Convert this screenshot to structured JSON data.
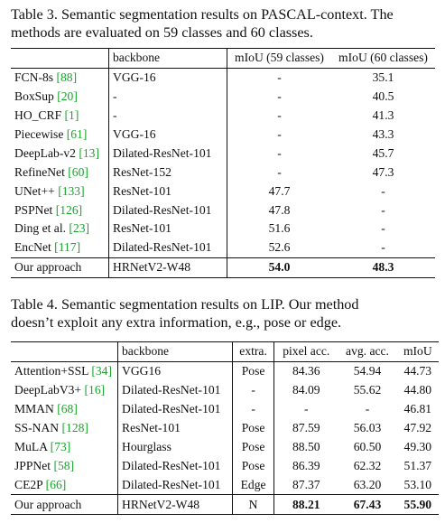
{
  "table3": {
    "caption_line1": "Table 3. Semantic segmentation results on PASCAL-context. The",
    "caption_line2": "methods are evaluated on 59 classes and 60 classes.",
    "headers": [
      "",
      "backbone",
      "mIoU (59 classes)",
      "mIoU (60 classes)"
    ],
    "rows": [
      {
        "method": "FCN-8s",
        "ref": "[88]",
        "backbone": "VGG-16",
        "m59": "-",
        "m60": "35.1"
      },
      {
        "method": "BoxSup",
        "ref": "[20]",
        "backbone": "-",
        "m59": "-",
        "m60": "40.5"
      },
      {
        "method": "HO_CRF",
        "ref": "[1]",
        "backbone": "-",
        "m59": "-",
        "m60": "41.3"
      },
      {
        "method": "Piecewise",
        "ref": "[61]",
        "backbone": "VGG-16",
        "m59": "-",
        "m60": "43.3"
      },
      {
        "method": "DeepLab-v2",
        "ref": "[13]",
        "backbone": "Dilated-ResNet-101",
        "m59": "-",
        "m60": "45.7"
      },
      {
        "method": "RefineNet",
        "ref": "[60]",
        "backbone": "ResNet-152",
        "m59": "-",
        "m60": "47.3"
      },
      {
        "method": "UNet++",
        "ref": "[133]",
        "backbone": "ResNet-101",
        "m59": "47.7",
        "m60": "-"
      },
      {
        "method": "PSPNet",
        "ref": "[126]",
        "backbone": "Dilated-ResNet-101",
        "m59": "47.8",
        "m60": "-"
      },
      {
        "method": "Ding et al.",
        "ref": "[23]",
        "backbone": "ResNet-101",
        "m59": "51.6",
        "m60": "-"
      },
      {
        "method": "EncNet",
        "ref": "[117]",
        "backbone": "Dilated-ResNet-101",
        "m59": "52.6",
        "m60": "-"
      }
    ],
    "final": {
      "method": "Our approach",
      "backbone": "HRNetV2-W48",
      "m59": "54.0",
      "m60": "48.3"
    }
  },
  "table4": {
    "caption_line1": "Table 4. Semantic segmentation results on LIP. Our method",
    "caption_line2": "doesn’t exploit any extra information, e.g., pose or edge.",
    "headers": [
      "",
      "backbone",
      "extra.",
      "pixel acc.",
      "avg. acc.",
      "mIoU"
    ],
    "rows": [
      {
        "method": "Attention+SSL",
        "ref": "[34]",
        "backbone": "VGG16",
        "extra": "Pose",
        "pix": "84.36",
        "avg": "54.94",
        "miou": "44.73"
      },
      {
        "method": "DeepLabV3+",
        "ref": "[16]",
        "backbone": "Dilated-ResNet-101",
        "extra": "-",
        "pix": "84.09",
        "avg": "55.62",
        "miou": "44.80"
      },
      {
        "method": "MMAN",
        "ref": "[68]",
        "backbone": "Dilated-ResNet-101",
        "extra": "-",
        "pix": "-",
        "avg": "-",
        "miou": "46.81"
      },
      {
        "method": "SS-NAN",
        "ref": "[128]",
        "backbone": "ResNet-101",
        "extra": "Pose",
        "pix": "87.59",
        "avg": "56.03",
        "miou": "47.92"
      },
      {
        "method": "MuLA",
        "ref": "[73]",
        "backbone": "Hourglass",
        "extra": "Pose",
        "pix": "88.50",
        "avg": "60.50",
        "miou": "49.30"
      },
      {
        "method": "JPPNet",
        "ref": "[58]",
        "backbone": "Dilated-ResNet-101",
        "extra": "Pose",
        "pix": "86.39",
        "avg": "62.32",
        "miou": "51.37"
      },
      {
        "method": "CE2P",
        "ref": "[66]",
        "backbone": "Dilated-ResNet-101",
        "extra": "Edge",
        "pix": "87.37",
        "avg": "63.20",
        "miou": "53.10"
      }
    ],
    "final": {
      "method": "Our approach",
      "backbone": "HRNetV2-W48",
      "extra": "N",
      "pix": "88.21",
      "avg": "67.43",
      "miou": "55.90"
    }
  },
  "colors": {
    "reference_link": "#19a32c"
  }
}
